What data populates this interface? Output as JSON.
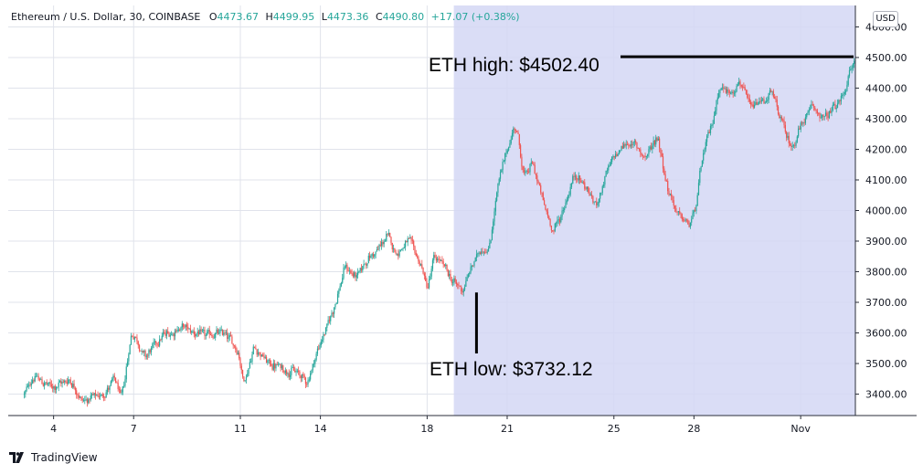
{
  "header": {
    "symbol": "Ethereum / U.S. Dollar, 30, COINBASE",
    "open_label": "O",
    "open": "4473.67",
    "high_label": "H",
    "high": "4499.95",
    "low_label": "L",
    "low": "4473.36",
    "close_label": "C",
    "close": "4490.80",
    "change": "+17.07 (+0.38%)"
  },
  "currency_button": "USD",
  "annotations": {
    "high_text": "ETH high: $4502.40",
    "high_value": 4502.4,
    "low_text": "ETH low: $3732.12",
    "low_value": 3732.12
  },
  "footer": {
    "brand": "TradingView",
    "logo_icon": "tradingview-logo-icon"
  },
  "colors": {
    "up": "#26a69a",
    "down": "#ef5350",
    "highlight": "#d3d7f5",
    "grid": "#e0e3eb",
    "axis_line": "#2a2e39"
  },
  "chart_data": {
    "type": "candlestick",
    "title": "",
    "ylim": [
      3330,
      4670
    ],
    "y_ticks": [
      3400,
      3500,
      3600,
      3700,
      3800,
      3900,
      4000,
      4100,
      4200,
      4300,
      4400,
      4500,
      4600
    ],
    "y_tick_labels": [
      "3400.00",
      "3500.00",
      "3600.00",
      "3700.00",
      "3800.00",
      "3900.00",
      "4000.00",
      "4100.00",
      "4200.00",
      "4300.00",
      "4400.00",
      "4500.00",
      "4600.00"
    ],
    "x_ticks": [
      {
        "label": "4",
        "day": 4
      },
      {
        "label": "7",
        "day": 7
      },
      {
        "label": "11",
        "day": 11
      },
      {
        "label": "14",
        "day": 14
      },
      {
        "label": "18",
        "day": 18
      },
      {
        "label": "21",
        "day": 21
      },
      {
        "label": "25",
        "day": 25
      },
      {
        "label": "28",
        "day": 28
      },
      {
        "label": "Nov",
        "day": 32
      }
    ],
    "x_range_days": [
      2.3,
      34.05
    ],
    "highlight_range_days": [
      19.0,
      34.05
    ],
    "price_path_anchors": [
      [
        2.9,
        3400
      ],
      [
        3.2,
        3460
      ],
      [
        3.9,
        3420
      ],
      [
        4.6,
        3450
      ],
      [
        5.0,
        3380
      ],
      [
        5.7,
        3390
      ],
      [
        6.3,
        3450
      ],
      [
        6.5,
        3370
      ],
      [
        6.9,
        3610
      ],
      [
        7.4,
        3520
      ],
      [
        8.0,
        3590
      ],
      [
        8.8,
        3620
      ],
      [
        9.6,
        3590
      ],
      [
        10.4,
        3600
      ],
      [
        10.9,
        3540
      ],
      [
        11.1,
        3430
      ],
      [
        11.5,
        3560
      ],
      [
        12.0,
        3500
      ],
      [
        12.7,
        3480
      ],
      [
        13.1,
        3470
      ],
      [
        13.5,
        3440
      ],
      [
        13.8,
        3530
      ],
      [
        14.3,
        3640
      ],
      [
        14.6,
        3720
      ],
      [
        14.9,
        3820
      ],
      [
        15.3,
        3780
      ],
      [
        15.7,
        3840
      ],
      [
        16.1,
        3870
      ],
      [
        16.5,
        3920
      ],
      [
        16.8,
        3860
      ],
      [
        17.3,
        3900
      ],
      [
        17.7,
        3830
      ],
      [
        18.0,
        3740
      ],
      [
        18.2,
        3850
      ],
      [
        18.6,
        3820
      ],
      [
        18.9,
        3770
      ],
      [
        19.3,
        3740
      ],
      [
        19.6,
        3810
      ],
      [
        20.0,
        3880
      ],
      [
        20.3,
        3870
      ],
      [
        20.6,
        4080
      ],
      [
        21.0,
        4210
      ],
      [
        21.3,
        4290
      ],
      [
        21.6,
        4100
      ],
      [
        21.9,
        4160
      ],
      [
        22.4,
        4000
      ],
      [
        22.7,
        3930
      ],
      [
        23.1,
        4010
      ],
      [
        23.5,
        4120
      ],
      [
        23.9,
        4080
      ],
      [
        24.3,
        4010
      ],
      [
        24.6,
        4100
      ],
      [
        25.0,
        4180
      ],
      [
        25.4,
        4220
      ],
      [
        25.8,
        4210
      ],
      [
        26.2,
        4170
      ],
      [
        26.6,
        4250
      ],
      [
        27.0,
        4060
      ],
      [
        27.4,
        3980
      ],
      [
        27.8,
        3950
      ],
      [
        28.0,
        4000
      ],
      [
        28.3,
        4180
      ],
      [
        28.7,
        4300
      ],
      [
        28.9,
        4410
      ],
      [
        29.3,
        4380
      ],
      [
        29.7,
        4420
      ],
      [
        30.1,
        4330
      ],
      [
        30.5,
        4360
      ],
      [
        30.9,
        4380
      ],
      [
        31.3,
        4280
      ],
      [
        31.6,
        4200
      ],
      [
        31.9,
        4260
      ],
      [
        32.4,
        4340
      ],
      [
        32.9,
        4300
      ],
      [
        33.3,
        4340
      ],
      [
        33.6,
        4380
      ],
      [
        33.9,
        4480
      ],
      [
        34.05,
        4490
      ]
    ]
  }
}
